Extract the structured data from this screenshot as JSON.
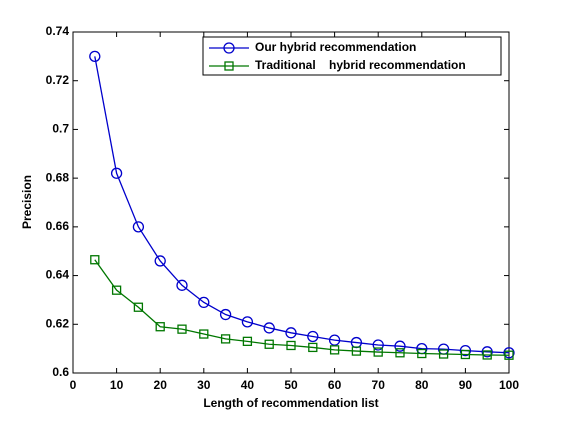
{
  "chart_data": {
    "type": "line",
    "x_label": "Length of recommendation list",
    "y_label": "Precision",
    "x": [
      5,
      10,
      15,
      20,
      25,
      30,
      35,
      40,
      45,
      50,
      55,
      60,
      65,
      70,
      75,
      80,
      85,
      90,
      95,
      100
    ],
    "series": [
      {
        "name": "Our hybrid recommendation",
        "color": "#0000cc",
        "marker": "circle",
        "values": [
          0.73,
          0.682,
          0.66,
          0.646,
          0.636,
          0.629,
          0.624,
          0.621,
          0.6185,
          0.6165,
          0.615,
          0.6135,
          0.6125,
          0.6115,
          0.611,
          0.61,
          0.6098,
          0.6092,
          0.6087,
          0.6083
        ]
      },
      {
        "name": "Traditional    hybrid recommendation",
        "color": "#007700",
        "marker": "square",
        "values": [
          0.6465,
          0.634,
          0.627,
          0.619,
          0.618,
          0.616,
          0.614,
          0.613,
          0.6118,
          0.6113,
          0.6105,
          0.6095,
          0.609,
          0.6086,
          0.6083,
          0.608,
          0.6078,
          0.6076,
          0.6074,
          0.6073
        ]
      }
    ],
    "xlim": [
      0,
      100
    ],
    "xticks": [
      0,
      10,
      20,
      30,
      40,
      50,
      60,
      70,
      80,
      90,
      100
    ],
    "ylim": [
      0.6,
      0.74
    ],
    "yticks": [
      0.6,
      0.62,
      0.64,
      0.66,
      0.68,
      0.7,
      0.72,
      0.74
    ],
    "legend": "upper right",
    "grid": false
  }
}
